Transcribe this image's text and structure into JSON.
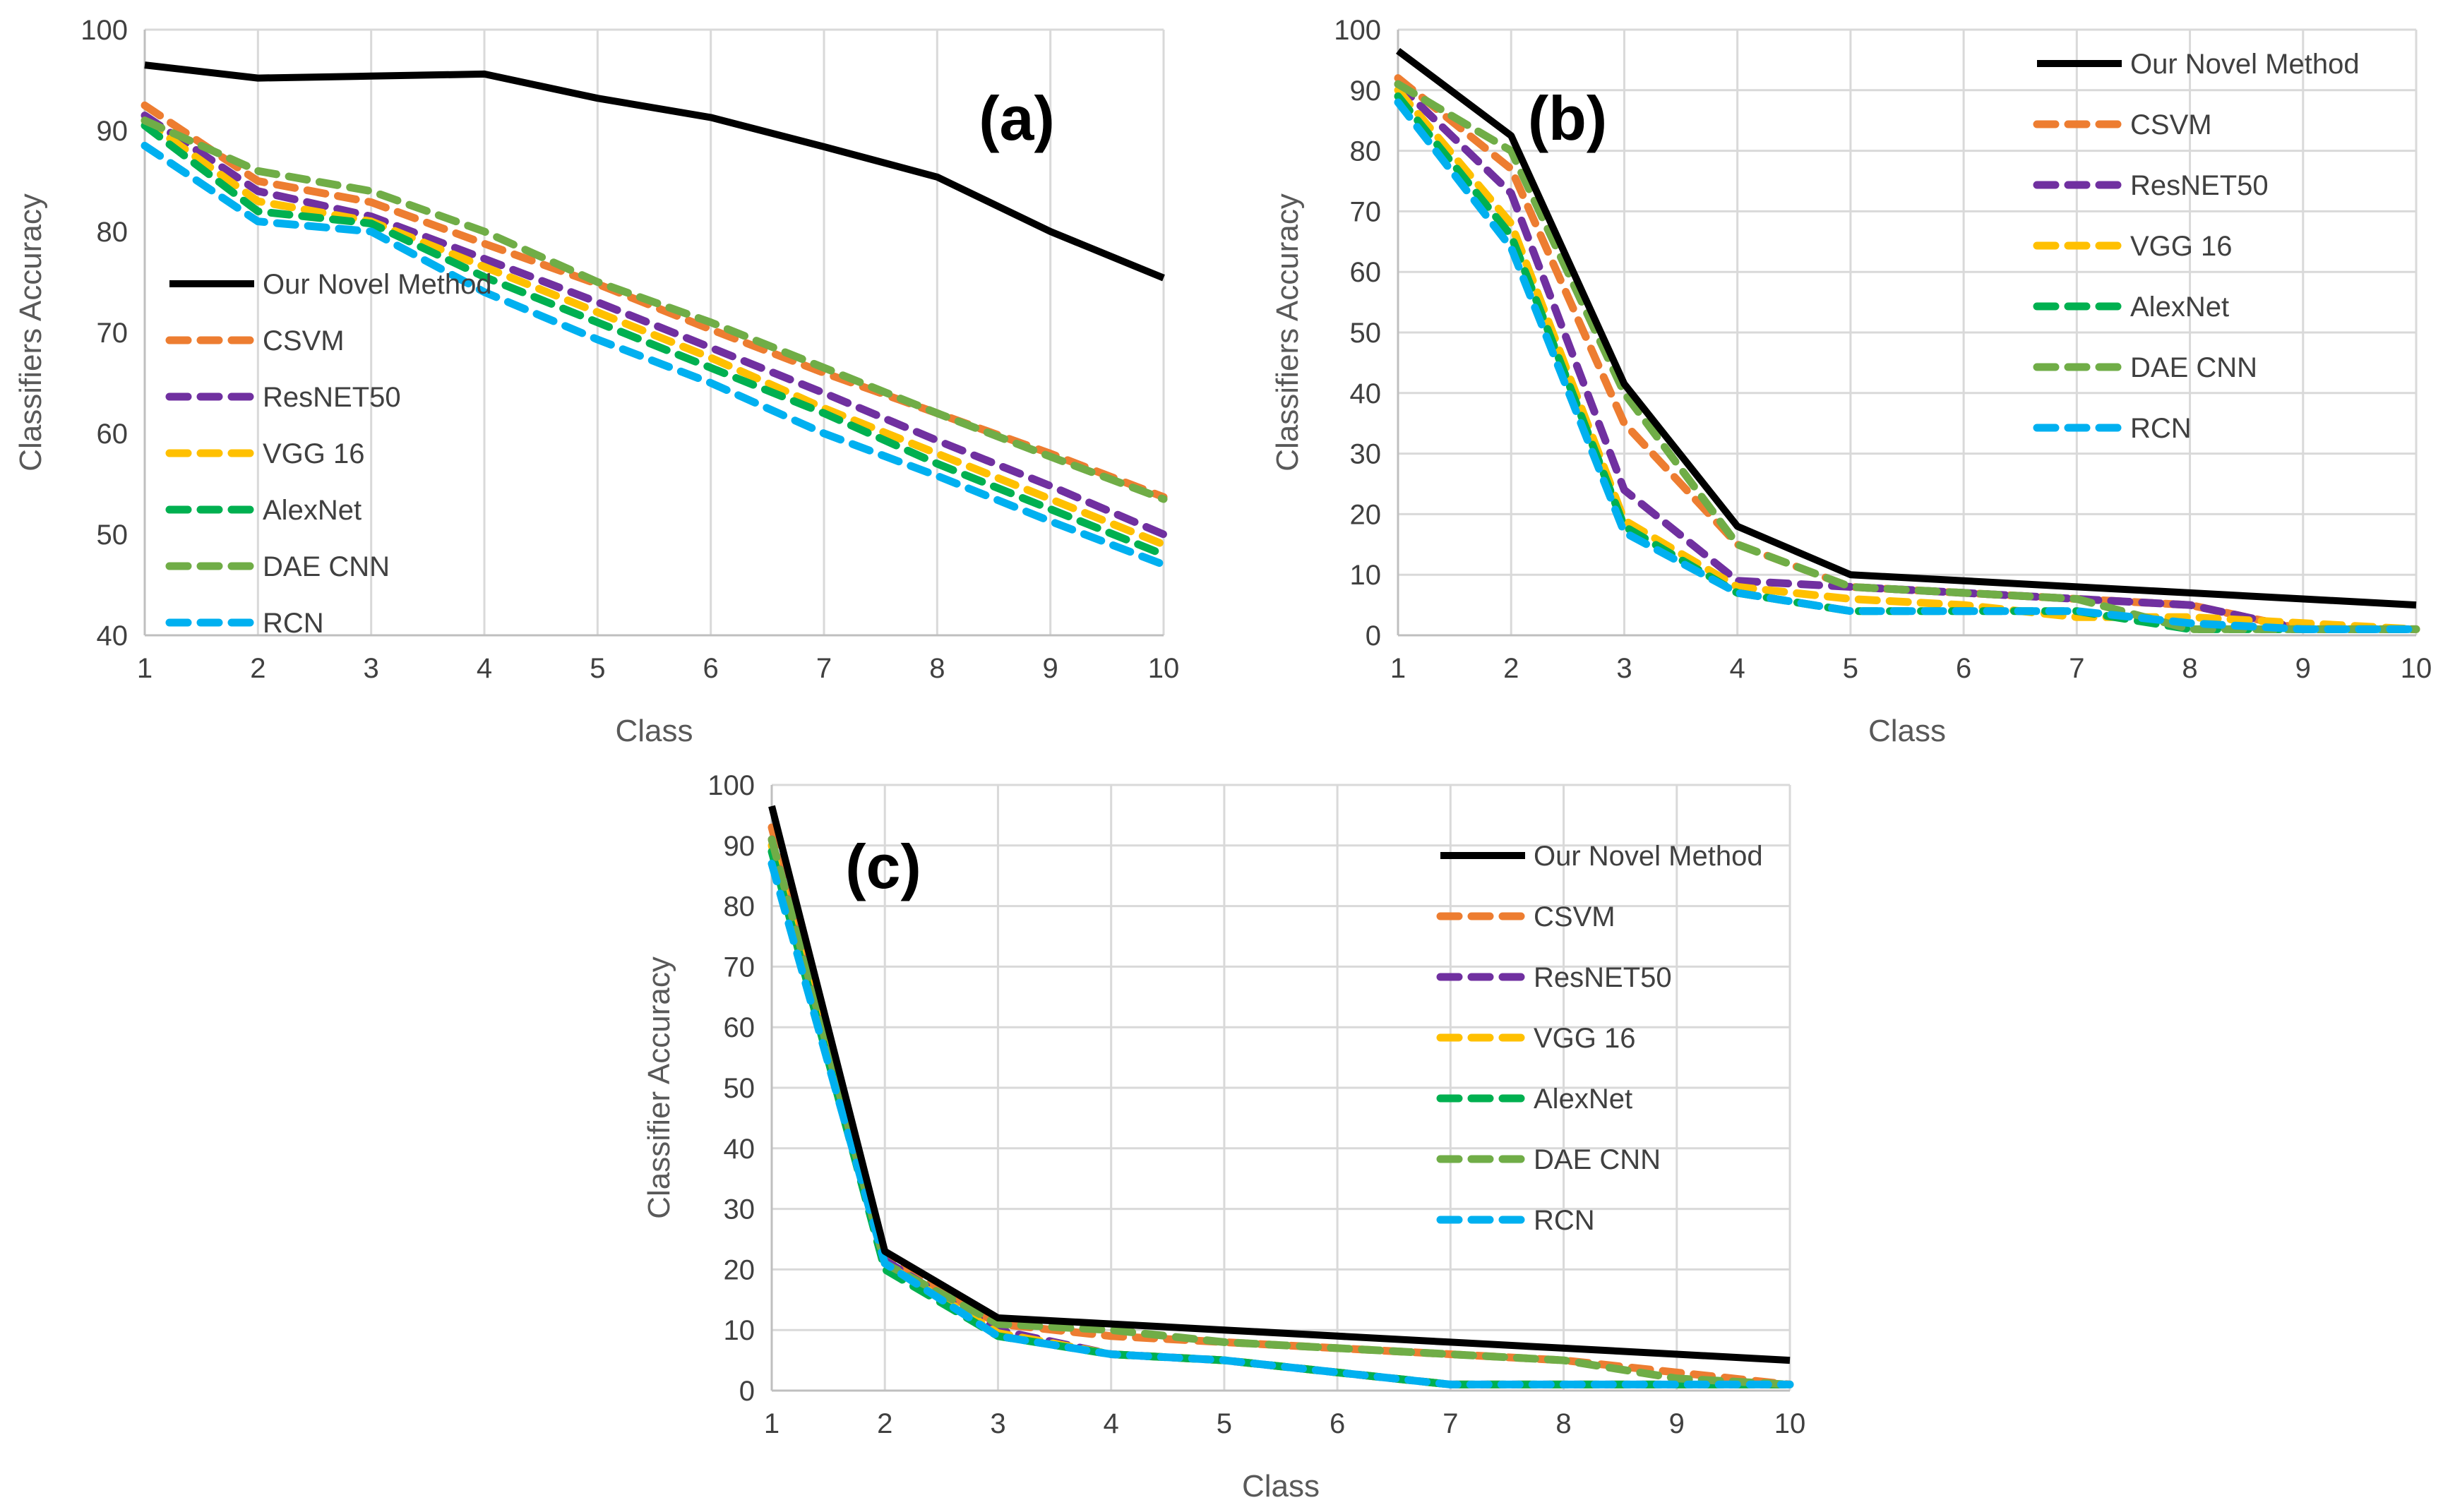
{
  "series_style": [
    {
      "color": "#000000",
      "dashed": false
    },
    {
      "color": "#ED7D31",
      "dashed": true
    },
    {
      "color": "#7030A0",
      "dashed": true
    },
    {
      "color": "#FFC000",
      "dashed": true
    },
    {
      "color": "#00B050",
      "dashed": true
    },
    {
      "color": "#70AD47",
      "dashed": true
    },
    {
      "color": "#00B0F0",
      "dashed": true
    }
  ],
  "chart_data": [
    {
      "type": "line",
      "panel_label": "(a)",
      "xlabel": "Class",
      "ylabel": "Classifiers Accuracy",
      "x": [
        1,
        2,
        3,
        4,
        5,
        6,
        7,
        8,
        9,
        10
      ],
      "xticks": [
        "1",
        "2",
        "3",
        "4",
        "5",
        "6",
        "7",
        "8",
        "9",
        "10"
      ],
      "ylim": [
        40,
        100
      ],
      "yticks": [
        "40",
        "50",
        "60",
        "70",
        "80",
        "90",
        "100"
      ],
      "grid": "vertical",
      "legend_position": "left",
      "series": [
        {
          "name": "Our Novel Method",
          "values": [
            96.5,
            95.2,
            95.4,
            95.6,
            93.2,
            91.3,
            88.4,
            85.4,
            80.0,
            75.4
          ]
        },
        {
          "name": "CSVM",
          "values": [
            92.5,
            85.0,
            82.9,
            78.8,
            74.8,
            70.3,
            66.0,
            62.0,
            58.0,
            53.7
          ]
        },
        {
          "name": "ResNET50",
          "values": [
            91.5,
            84.0,
            81.5,
            77.3,
            73.0,
            68.5,
            64.0,
            59.3,
            54.8,
            50.0
          ]
        },
        {
          "name": "VGG 16",
          "values": [
            91.0,
            83.0,
            81.0,
            76.5,
            72.0,
            67.5,
            62.5,
            58.0,
            53.5,
            49.0
          ]
        },
        {
          "name": "AlexNet",
          "values": [
            90.5,
            82.0,
            80.8,
            75.5,
            71.0,
            66.5,
            62.0,
            57.0,
            52.5,
            48.0
          ]
        },
        {
          "name": "DAE CNN",
          "values": [
            91.0,
            86.0,
            84.0,
            80.0,
            75.0,
            71.0,
            66.5,
            62.0,
            57.7,
            53.5
          ]
        },
        {
          "name": "RCN",
          "values": [
            88.5,
            81.0,
            80.0,
            74.0,
            69.3,
            65.0,
            60.0,
            55.8,
            51.3,
            47.0
          ]
        }
      ]
    },
    {
      "type": "line",
      "panel_label": "(b)",
      "xlabel": "Class",
      "ylabel": "Classifiers Accuracy",
      "x": [
        1,
        2,
        3,
        4,
        5,
        6,
        7,
        8,
        9,
        10
      ],
      "xticks": [
        "1",
        "2",
        "3",
        "4",
        "5",
        "6",
        "7",
        "8",
        "9",
        "10"
      ],
      "ylim": [
        0,
        100
      ],
      "yticks": [
        "0",
        "10",
        "20",
        "30",
        "40",
        "50",
        "60",
        "70",
        "80",
        "90",
        "100"
      ],
      "grid": "both",
      "legend_position": "top-right",
      "series": [
        {
          "name": "Our Novel Method",
          "values": [
            96.5,
            82.5,
            41.5,
            18.0,
            10.0,
            9.0,
            8.0,
            7.0,
            6.0,
            5.0
          ]
        },
        {
          "name": "CSVM",
          "values": [
            92.0,
            77.0,
            35.0,
            15.0,
            8.0,
            7.0,
            6.0,
            5.0,
            1.0,
            1.0
          ]
        },
        {
          "name": "ResNET50",
          "values": [
            91.0,
            73.0,
            24.0,
            9.0,
            8.0,
            7.0,
            6.0,
            5.0,
            1.0,
            1.0
          ]
        },
        {
          "name": "VGG 16",
          "values": [
            90.0,
            68.0,
            19.0,
            8.0,
            6.0,
            5.0,
            3.0,
            3.0,
            2.0,
            1.0
          ]
        },
        {
          "name": "AlexNet",
          "values": [
            89.0,
            66.0,
            18.0,
            7.0,
            4.0,
            4.0,
            4.0,
            1.0,
            1.0,
            1.0
          ]
        },
        {
          "name": "DAE CNN",
          "values": [
            91.0,
            80.0,
            40.0,
            15.0,
            8.0,
            7.0,
            6.0,
            1.0,
            1.0,
            1.0
          ]
        },
        {
          "name": "RCN",
          "values": [
            88.0,
            64.0,
            17.0,
            7.0,
            4.0,
            4.0,
            4.0,
            2.0,
            1.0,
            1.0
          ]
        }
      ]
    },
    {
      "type": "line",
      "panel_label": "(c)",
      "xlabel": "Class",
      "ylabel": "Classifier Accuracy",
      "x": [
        1,
        2,
        3,
        4,
        5,
        6,
        7,
        8,
        9,
        10
      ],
      "xticks": [
        "1",
        "2",
        "3",
        "4",
        "5",
        "6",
        "7",
        "8",
        "9",
        "10"
      ],
      "ylim": [
        0,
        100
      ],
      "yticks": [
        "0",
        "10",
        "20",
        "30",
        "40",
        "50",
        "60",
        "70",
        "80",
        "90",
        "100"
      ],
      "grid": "both",
      "legend_position": "top-right",
      "series": [
        {
          "name": "Our Novel Method",
          "values": [
            96.5,
            23.0,
            12.0,
            11.0,
            10.0,
            9.0,
            8.0,
            7.0,
            6.0,
            5.0
          ]
        },
        {
          "name": "CSVM",
          "values": [
            93.0,
            22.0,
            11.0,
            9.0,
            8.0,
            7.0,
            6.0,
            5.0,
            3.0,
            1.0
          ]
        },
        {
          "name": "ResNET50",
          "values": [
            91.0,
            21.5,
            10.0,
            6.0,
            5.0,
            3.0,
            1.0,
            1.0,
            1.0,
            1.0
          ]
        },
        {
          "name": "VGG 16",
          "values": [
            90.0,
            21.0,
            9.5,
            6.0,
            5.0,
            3.0,
            1.0,
            1.0,
            1.0,
            1.0
          ]
        },
        {
          "name": "AlexNet",
          "values": [
            89.0,
            20.0,
            9.0,
            6.0,
            5.0,
            3.0,
            1.0,
            1.0,
            1.0,
            1.0
          ]
        },
        {
          "name": "DAE CNN",
          "values": [
            91.0,
            21.0,
            11.0,
            10.0,
            8.0,
            7.0,
            6.0,
            5.0,
            2.0,
            1.0
          ]
        },
        {
          "name": "RCN",
          "values": [
            87.0,
            21.0,
            9.0,
            6.0,
            5.0,
            3.0,
            1.0,
            1.0,
            1.0,
            1.0
          ]
        }
      ]
    }
  ]
}
